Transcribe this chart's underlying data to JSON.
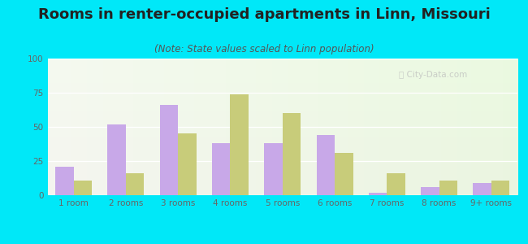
{
  "title": "Rooms in renter-occupied apartments in Linn, Missouri",
  "subtitle": "(Note: State values scaled to Linn population)",
  "categories": [
    "1 room",
    "2 rooms",
    "3 rooms",
    "4 rooms",
    "5 rooms",
    "6 rooms",
    "7 rooms",
    "8 rooms",
    "9+ rooms"
  ],
  "linn_values": [
    21,
    52,
    66,
    38,
    38,
    44,
    2,
    6,
    9
  ],
  "missouri_values": [
    11,
    16,
    45,
    74,
    60,
    31,
    16,
    11,
    11
  ],
  "linn_color": "#c8a8e8",
  "missouri_color": "#c8cc7a",
  "background_outer": "#00e8f8",
  "ylim": [
    0,
    100
  ],
  "yticks": [
    0,
    25,
    50,
    75,
    100
  ],
  "bar_width": 0.35,
  "figsize": [
    6.5,
    3.0
  ],
  "dpi": 100,
  "title_fontsize": 13,
  "subtitle_fontsize": 8.5,
  "tick_fontsize": 7.5,
  "legend_fontsize": 9.5
}
